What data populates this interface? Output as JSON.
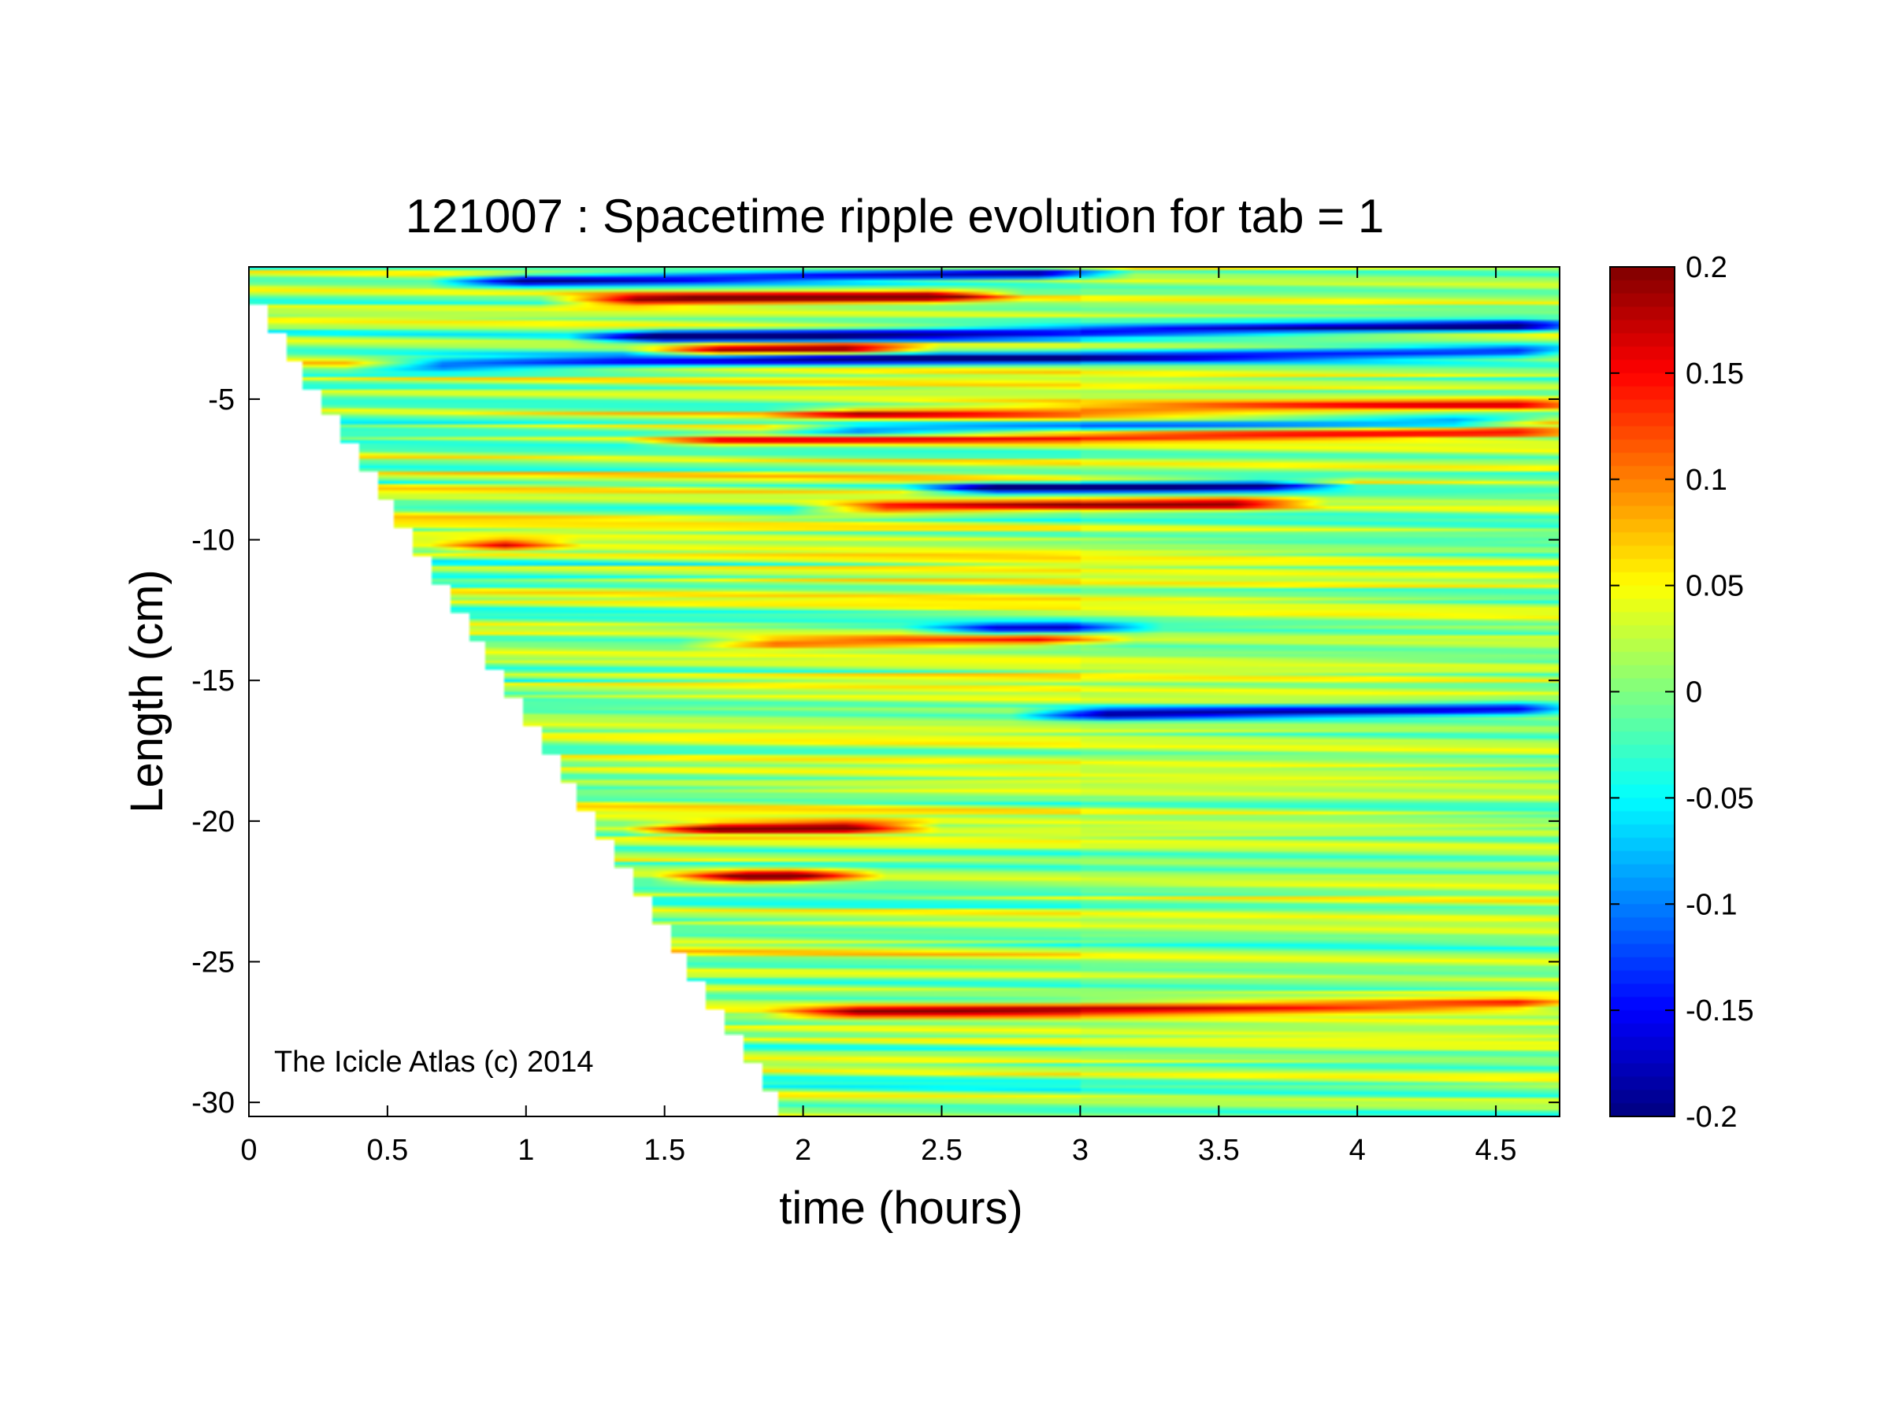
{
  "chart_data": {
    "type": "heatmap",
    "title": "121007 : Spacetime ripple evolution for tab = 1",
    "xlabel": "time (hours)",
    "ylabel": "Length (cm)",
    "xlim": [
      0,
      4.73
    ],
    "ylim": [
      -30.5,
      -0.3
    ],
    "x_ticks": [
      0,
      0.5,
      1,
      1.5,
      2,
      2.5,
      3,
      3.5,
      4,
      4.5
    ],
    "x_tick_labels": [
      "0",
      "0.5",
      "1",
      "1.5",
      "2",
      "2.5",
      "3",
      "3.5",
      "4",
      "4.5"
    ],
    "y_ticks": [
      -5,
      -10,
      -15,
      -20,
      -25,
      -30
    ],
    "y_tick_labels": [
      "-5",
      "-10",
      "-15",
      "-20",
      "-25",
      "-30"
    ],
    "colorbar": {
      "colormap": "jet",
      "limits": [
        -0.2,
        0.2
      ],
      "ticks": [
        0.2,
        0.15,
        0.1,
        0.05,
        0,
        -0.05,
        -0.1,
        -0.15,
        -0.2
      ],
      "tick_labels": [
        "0.2",
        "0.15",
        "0.1",
        "0.05",
        "0",
        "-0.05",
        "-0.1",
        "-0.15",
        "-0.2"
      ]
    },
    "data_boundary": {
      "description_free": true,
      "time_start": [
        0,
        1.97
      ],
      "length_start": [
        -0.6,
        -30.5
      ]
    },
    "strong_ridges": [
      {
        "x_start": 1.2,
        "x_end": 2.6,
        "y": -1.5,
        "value": 0.2
      },
      {
        "x_start": 0.8,
        "x_end": 3.0,
        "y": -0.8,
        "value": -0.2
      },
      {
        "x_start": 1.3,
        "x_end": 4.73,
        "y": -2.8,
        "value": -0.2
      },
      {
        "x_start": 1.5,
        "x_end": 2.3,
        "y": -3.3,
        "value": 0.18
      },
      {
        "x_start": 0.5,
        "x_end": 4.73,
        "y": -3.8,
        "value": -0.18
      },
      {
        "x_start": 2.0,
        "x_end": 4.73,
        "y": -5.5,
        "value": 0.12
      },
      {
        "x_start": 2.0,
        "x_end": 4.5,
        "y": -6.1,
        "value": -0.15
      },
      {
        "x_start": 1.5,
        "x_end": 4.73,
        "y": -6.5,
        "value": 0.12
      },
      {
        "x_start": 2.5,
        "x_end": 3.8,
        "y": -8.2,
        "value": -0.2
      },
      {
        "x_start": 2.1,
        "x_end": 3.7,
        "y": -8.9,
        "value": 0.17
      },
      {
        "x_start": 0.8,
        "x_end": 1.0,
        "y": -10.2,
        "value": 0.15
      },
      {
        "x_start": 1.7,
        "x_end": 3.0,
        "y": -13.7,
        "value": 0.13
      },
      {
        "x_start": 2.5,
        "x_end": 3.1,
        "y": -13.2,
        "value": -0.14
      },
      {
        "x_start": 2.9,
        "x_end": 4.73,
        "y": -16.2,
        "value": -0.2
      },
      {
        "x_start": 1.5,
        "x_end": 2.3,
        "y": -20.3,
        "value": 0.2
      },
      {
        "x_start": 1.6,
        "x_end": 2.1,
        "y": -22.0,
        "value": 0.2
      },
      {
        "x_start": 2.0,
        "x_end": 4.73,
        "y": -26.8,
        "value": 0.15
      }
    ]
  },
  "annotation": "The Icicle Atlas (c) 2014"
}
